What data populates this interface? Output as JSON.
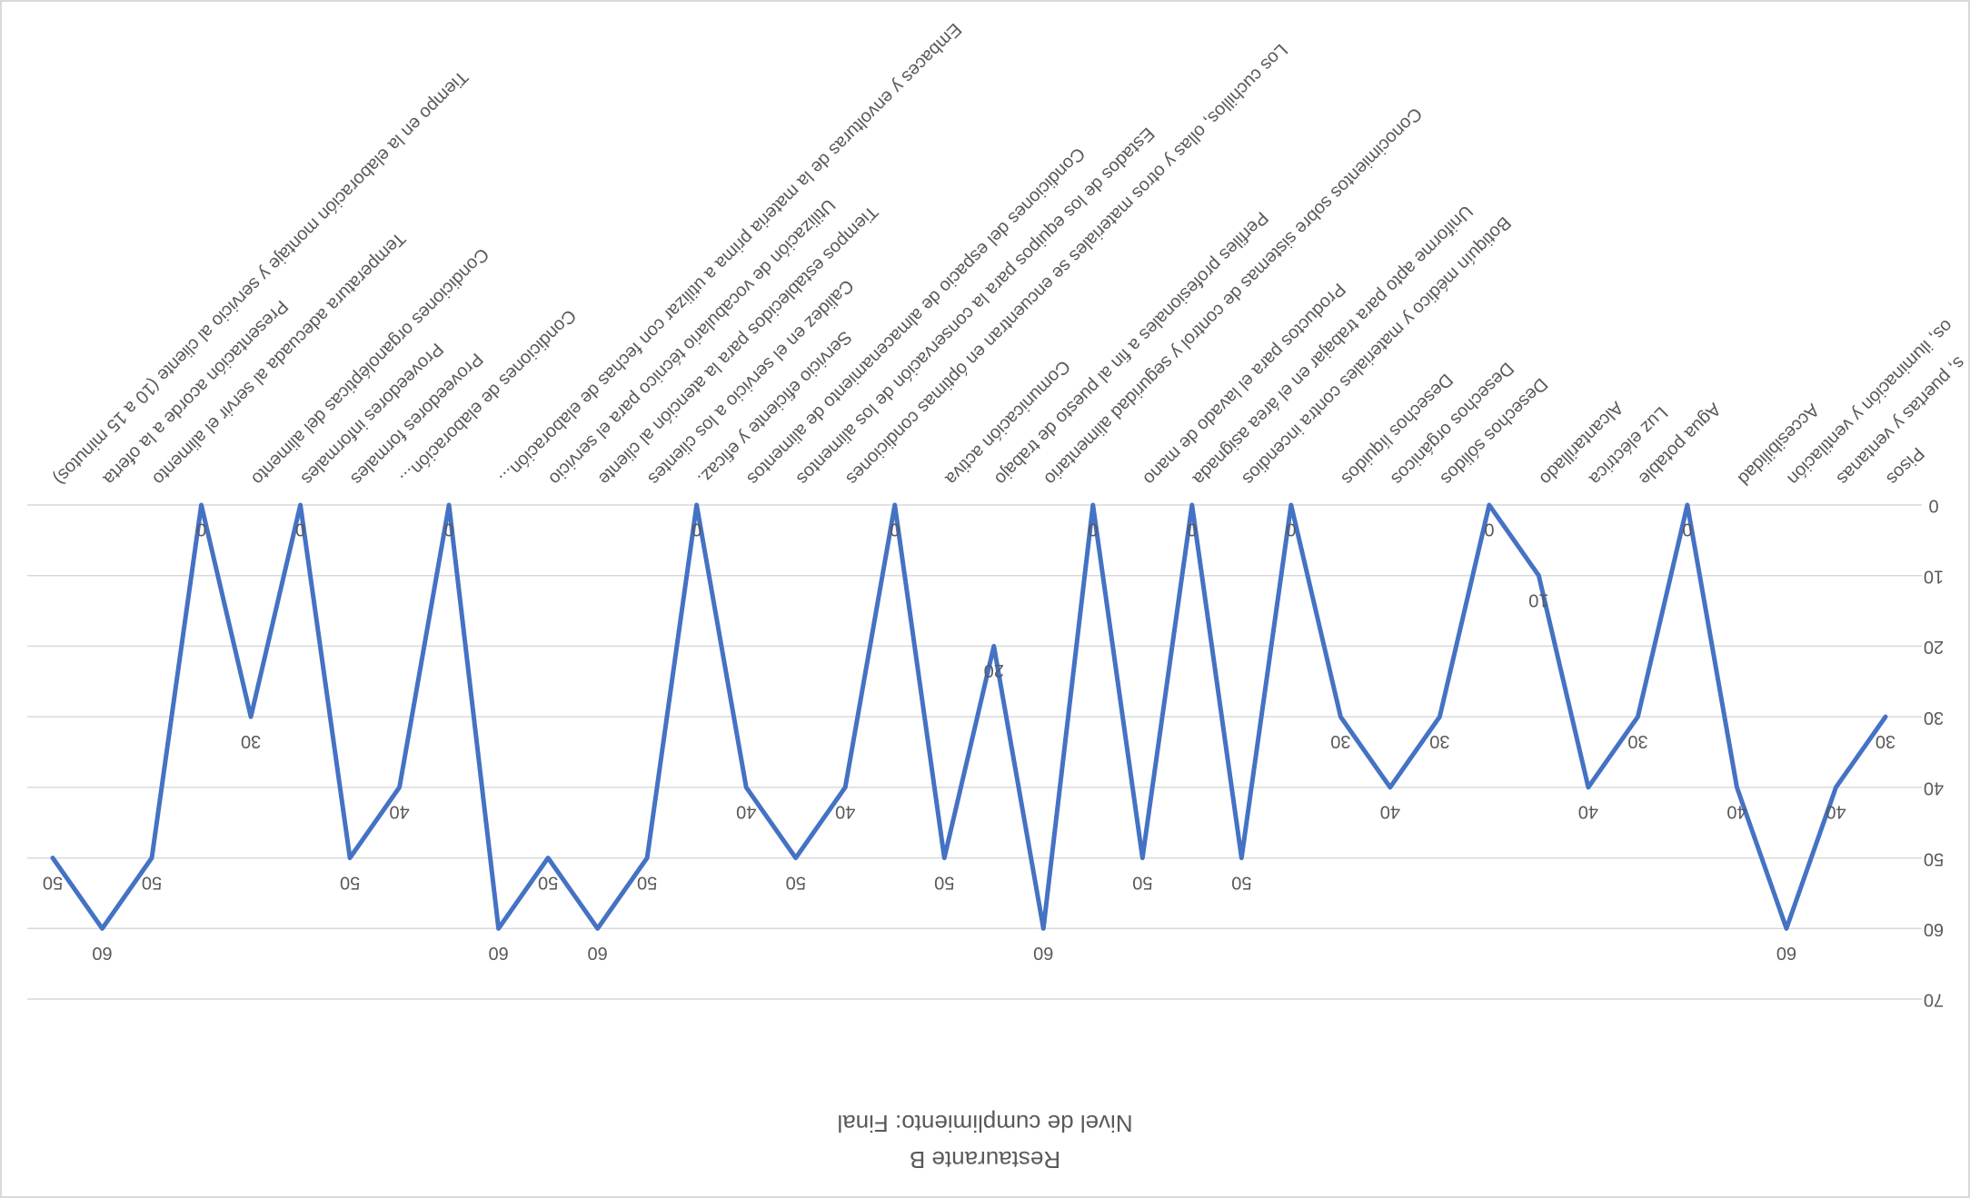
{
  "chart_data": {
    "type": "line",
    "title": "Restaurante  B",
    "subtitle": "Nivel de cumplimiento: Final",
    "categories": [
      "Pisos",
      "s, puertas y ventanas",
      "os, iluminación y ventilación",
      "Accesibilidad",
      null,
      "Agua potable",
      "Luz eléctrica",
      "Alcantarillado",
      null,
      "Desechos sólidos",
      "Desechos orgánicos",
      "Desechos líquidos",
      null,
      "Botiquín médico y materiales contra incendios",
      "Uniforme apto para trabajar en el área asignada",
      "Productos para el lavado de mano",
      null,
      "Conocimientos sobre sistemas de control y seguridad alimentario",
      "Perfiles profesionales a fin al puesto de trabajo",
      "Comunicación activa",
      null,
      "Los cuchillos, ollas y otros materiales se encuentran en óptimas condiciones",
      "Estados de los equipos para la conservación de los alimentos",
      "Condiciones del espacio de almacenamiento de alimentos",
      "Servicio eficiente y eficaz.",
      "Calidez en el servicio a los clientes",
      "Tiempos establecidos para la atención al cliente",
      "Utilización de vocabulario técnico para el servicio",
      "Embaces y envolturas de la materia prima a utilizar con fechas de elaboración...",
      null,
      "Condiciones de elaboración...",
      "Proveedores formales",
      "Proveedores informales",
      "Condiciones organolépticas del alimento",
      null,
      "Temperatura adecuada al servir el alimento",
      "Presentación acorde a la oferta",
      "Tiempo en la elaboración montaje y servicio al cliente (10 a 15 minutos)"
    ],
    "series": [
      {
        "name": "Nivel de cumplimiento",
        "color": "#4472c4",
        "values": [
          30,
          40,
          60,
          40,
          0,
          30,
          40,
          10,
          0,
          30,
          40,
          30,
          0,
          50,
          0,
          50,
          0,
          60,
          20,
          50,
          0,
          40,
          50,
          40,
          0,
          50,
          60,
          50,
          60,
          0,
          40,
          50,
          0,
          30,
          0,
          50,
          60,
          50
        ]
      }
    ],
    "ylim": [
      0,
      70
    ],
    "yticks": [
      0,
      10,
      20,
      30,
      40,
      50,
      60,
      70
    ],
    "grid": true
  }
}
